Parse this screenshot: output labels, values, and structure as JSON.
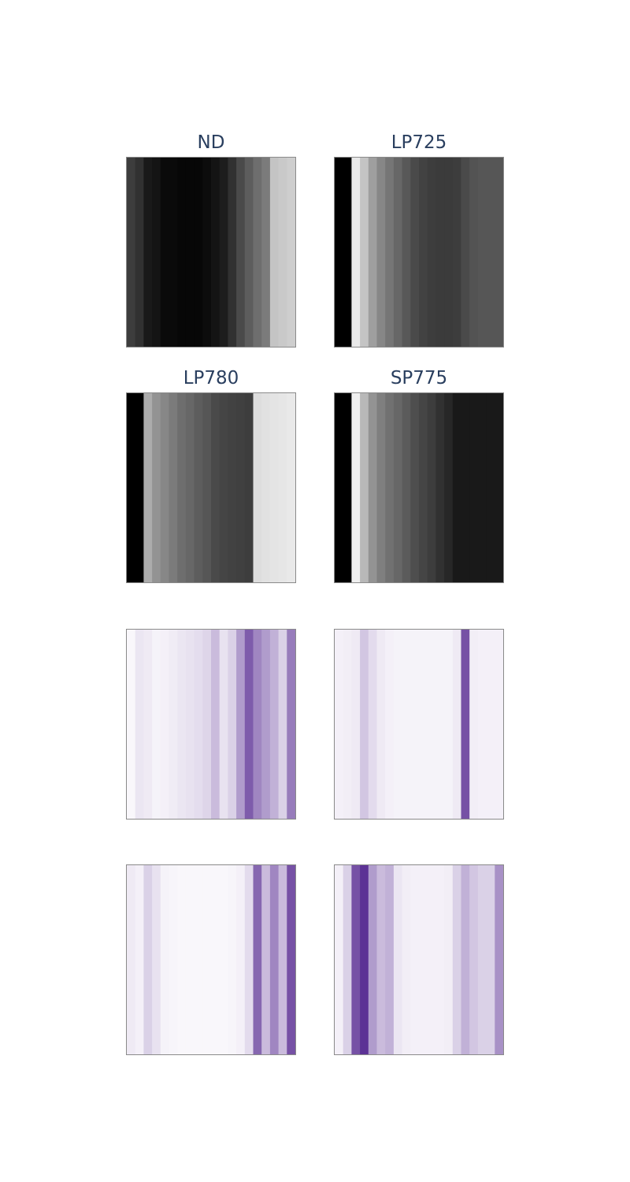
{
  "chart_data": [
    {
      "type": "heatmap",
      "colorscale": "greys",
      "title": "ND",
      "columns": [
        0.25,
        0.2,
        0.1,
        0.08,
        0.04,
        0.04,
        0.03,
        0.03,
        0.03,
        0.05,
        0.08,
        0.12,
        0.2,
        0.3,
        0.38,
        0.45,
        0.5,
        0.8,
        0.82,
        0.84
      ]
    },
    {
      "type": "heatmap",
      "colorscale": "greys",
      "title": "LP725",
      "columns": [
        0.0,
        0.0,
        0.95,
        0.8,
        0.65,
        0.55,
        0.48,
        0.42,
        0.36,
        0.3,
        0.27,
        0.25,
        0.24,
        0.24,
        0.25,
        0.3,
        0.34,
        0.35,
        0.35,
        0.35
      ]
    },
    {
      "type": "heatmap",
      "colorscale": "greys",
      "title": "LP780",
      "columns": [
        0.0,
        0.0,
        0.7,
        0.6,
        0.55,
        0.5,
        0.45,
        0.42,
        0.38,
        0.35,
        0.3,
        0.28,
        0.27,
        0.26,
        0.25,
        0.9,
        0.92,
        0.93,
        0.94,
        0.95
      ]
    },
    {
      "type": "heatmap",
      "colorscale": "greys",
      "title": "SP775",
      "columns": [
        0.0,
        0.0,
        0.98,
        0.75,
        0.6,
        0.52,
        0.46,
        0.42,
        0.37,
        0.32,
        0.28,
        0.25,
        0.2,
        0.16,
        0.1,
        0.1,
        0.1,
        0.1,
        0.1,
        0.1
      ]
    },
    {
      "type": "heatmap",
      "colorscale": "purples",
      "title": "",
      "columns": [
        0.02,
        0.1,
        0.08,
        0.04,
        0.05,
        0.07,
        0.1,
        0.12,
        0.14,
        0.18,
        0.3,
        0.12,
        0.2,
        0.45,
        0.75,
        0.55,
        0.45,
        0.35,
        0.2,
        0.6
      ]
    },
    {
      "type": "heatmap",
      "colorscale": "purples",
      "title": "",
      "columns": [
        0.05,
        0.06,
        0.08,
        0.25,
        0.15,
        0.08,
        0.05,
        0.04,
        0.04,
        0.04,
        0.04,
        0.04,
        0.04,
        0.04,
        0.08,
        0.8,
        0.06,
        0.05,
        0.05,
        0.05
      ]
    },
    {
      "type": "heatmap",
      "colorscale": "purples",
      "title": "",
      "columns": [
        0.08,
        0.05,
        0.2,
        0.12,
        0.04,
        0.03,
        0.02,
        0.02,
        0.02,
        0.02,
        0.02,
        0.02,
        0.03,
        0.05,
        0.15,
        0.7,
        0.3,
        0.55,
        0.3,
        0.8
      ]
    },
    {
      "type": "heatmap",
      "colorscale": "purples",
      "title": "",
      "columns": [
        0.05,
        0.2,
        0.8,
        0.95,
        0.45,
        0.3,
        0.35,
        0.1,
        0.06,
        0.05,
        0.05,
        0.05,
        0.05,
        0.06,
        0.2,
        0.35,
        0.25,
        0.2,
        0.2,
        0.5
      ]
    }
  ]
}
